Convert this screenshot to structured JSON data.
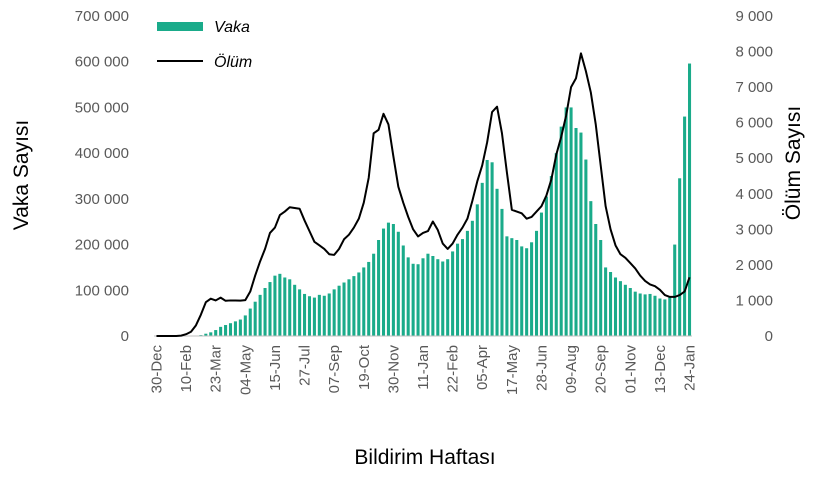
{
  "chart_data": {
    "type": "bar",
    "title": "",
    "xlabel": "Bildirim Haftası",
    "ylabel": "Vaka Sayısı",
    "y2label": "Ölüm Sayısı",
    "ylim": [
      0,
      700000
    ],
    "y2lim": [
      0,
      9000
    ],
    "yticks": [
      0,
      100000,
      200000,
      300000,
      400000,
      500000,
      600000,
      700000
    ],
    "yticklabels": [
      "0",
      "100 000",
      "200 000",
      "300 000",
      "400 000",
      "500 000",
      "600 000",
      "700 000"
    ],
    "y2ticks": [
      0,
      1000,
      2000,
      3000,
      4000,
      5000,
      6000,
      7000,
      8000,
      9000
    ],
    "y2ticklabels": [
      "0",
      "1 000",
      "2 000",
      "3 000",
      "4 000",
      "5 000",
      "6 000",
      "7 000",
      "8 000",
      "9 000"
    ],
    "xticklabels": [
      "30-Dec",
      "10-Feb",
      "23-Mar",
      "04-May",
      "15-Jun",
      "27-Jul",
      "07-Sep",
      "19-Oct",
      "30-Nov",
      "11-Jan",
      "22-Feb",
      "05-Apr",
      "17-May",
      "28-Jun",
      "09-Aug",
      "20-Sep",
      "01-Nov",
      "13-Dec",
      "24-Jan"
    ],
    "xtick_week_index": [
      0,
      6,
      12,
      18,
      24,
      30,
      36,
      42,
      48,
      54,
      60,
      66,
      72,
      78,
      84,
      90,
      96,
      102,
      108
    ],
    "legend": {
      "placement": "top-left",
      "entries": [
        "Vaka",
        "Ölüm"
      ]
    },
    "colors": {
      "bars": "#1aab8a",
      "line": "#000000",
      "ticks": "#595959"
    },
    "series": [
      {
        "name": "Vaka",
        "kind": "bar",
        "axis": "left",
        "values": [
          0,
          0,
          0,
          0,
          0,
          0,
          0,
          0,
          0,
          2000,
          5000,
          8000,
          13000,
          20000,
          24000,
          28000,
          32000,
          36000,
          45000,
          60000,
          75000,
          90000,
          105000,
          118000,
          132000,
          136000,
          128000,
          124000,
          112000,
          102000,
          92000,
          87000,
          84000,
          90000,
          88000,
          93000,
          102000,
          110000,
          117000,
          124000,
          131000,
          139000,
          150000,
          162000,
          180000,
          210000,
          235000,
          248000,
          245000,
          228000,
          198000,
          172000,
          158000,
          157000,
          170000,
          180000,
          175000,
          168000,
          163000,
          168000,
          185000,
          202000,
          212000,
          230000,
          252000,
          288000,
          335000,
          385000,
          380000,
          322000,
          278000,
          218000,
          214000,
          210000,
          196000,
          192000,
          205000,
          230000,
          270000,
          305000,
          350000,
          400000,
          458000,
          500000,
          500000,
          455000,
          445000,
          386000,
          295000,
          245000,
          210000,
          150000,
          140000,
          128000,
          120000,
          112000,
          105000,
          97000,
          93000,
          91000,
          92000,
          88000,
          82000,
          80000,
          84000,
          200000,
          345000,
          480000,
          596000
        ]
      },
      {
        "name": "Ölüm",
        "kind": "line",
        "axis": "right",
        "values": [
          0,
          0,
          0,
          0,
          0,
          10,
          50,
          120,
          300,
          600,
          950,
          1050,
          1000,
          1080,
          990,
          1000,
          1000,
          995,
          1010,
          1250,
          1700,
          2100,
          2450,
          2900,
          3050,
          3400,
          3500,
          3620,
          3600,
          3580,
          3250,
          2950,
          2650,
          2550,
          2450,
          2300,
          2280,
          2450,
          2720,
          2850,
          3050,
          3300,
          3750,
          4450,
          5700,
          5800,
          6250,
          5950,
          5050,
          4200,
          3750,
          3350,
          3000,
          2800,
          2900,
          2950,
          3220,
          2980,
          2600,
          2450,
          2600,
          2850,
          3050,
          3300,
          3800,
          4350,
          4800,
          5450,
          6300,
          6450,
          5700,
          4600,
          3550,
          3500,
          3450,
          3300,
          3350,
          3500,
          3650,
          3950,
          4400,
          5100,
          5600,
          6200,
          7000,
          7250,
          7950,
          7450,
          6850,
          5950,
          4800,
          3650,
          3000,
          2550,
          2300,
          2200,
          2050,
          1900,
          1700,
          1550,
          1450,
          1400,
          1300,
          1150,
          1100,
          1100,
          1150,
          1250,
          1650
        ]
      }
    ]
  }
}
